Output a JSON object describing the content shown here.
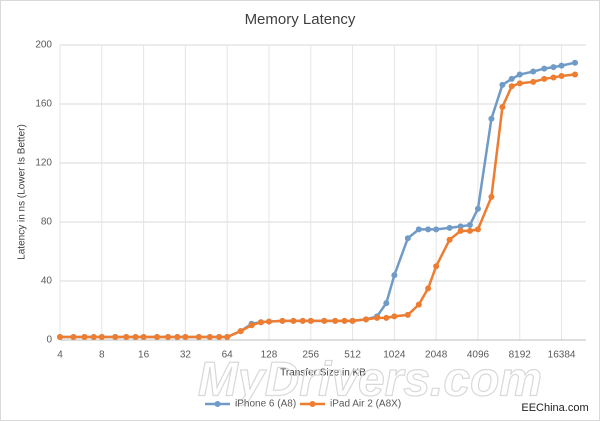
{
  "chart_data": {
    "type": "line",
    "title": "Memory Latency",
    "x_label": "Transfer Size in KB",
    "y_label": "Latency in ns (Lower Is Better)",
    "x": [
      4,
      5,
      6,
      7,
      8,
      10,
      12,
      14,
      16,
      20,
      24,
      28,
      32,
      40,
      48,
      56,
      64,
      80,
      96,
      112,
      128,
      160,
      192,
      224,
      256,
      320,
      384,
      448,
      512,
      640,
      768,
      896,
      1024,
      1280,
      1536,
      1792,
      2048,
      2560,
      3072,
      3584,
      4096,
      5120,
      6144,
      7168,
      8192,
      10240,
      12288,
      14336,
      16384,
      20480
    ],
    "series": [
      {
        "name": "iPhone 6 (A8)",
        "color": "#6f9bc6",
        "values": [
          2,
          2,
          2,
          2,
          2,
          2,
          2,
          2,
          2,
          2,
          2,
          2,
          2,
          2,
          2,
          2,
          2,
          6,
          11,
          12,
          12.5,
          13,
          13,
          13,
          13,
          13,
          13,
          13,
          13,
          14,
          16,
          25,
          44,
          69,
          75,
          75,
          75,
          76,
          77,
          78,
          89,
          150,
          173,
          177,
          180,
          182,
          184,
          185,
          186,
          188
        ]
      },
      {
        "name": "iPad Air 2 (A8X)",
        "color": "#ed7d31",
        "values": [
          2,
          2,
          2,
          2,
          2,
          2,
          2,
          2,
          2,
          2,
          2,
          2,
          2,
          2,
          2,
          2,
          2,
          6,
          10,
          12,
          12.5,
          13,
          13,
          13,
          13,
          13,
          13,
          13,
          13,
          14,
          15,
          15,
          16,
          17,
          24,
          35,
          50,
          68,
          74,
          74,
          75,
          97,
          158,
          172,
          174,
          175,
          177,
          178,
          179,
          180
        ]
      }
    ],
    "xscale": "log2",
    "xlim": [
      4,
      24576
    ],
    "xticks": [
      4,
      8,
      16,
      32,
      64,
      128,
      256,
      512,
      1024,
      2048,
      4096,
      8192,
      16384
    ],
    "ylim": [
      0,
      200
    ],
    "yticks": [
      0,
      40,
      80,
      120,
      160,
      200
    ],
    "grid": true,
    "legend": "bottom",
    "watermark": "MyDrivers.com",
    "source": "EEChina.com"
  }
}
